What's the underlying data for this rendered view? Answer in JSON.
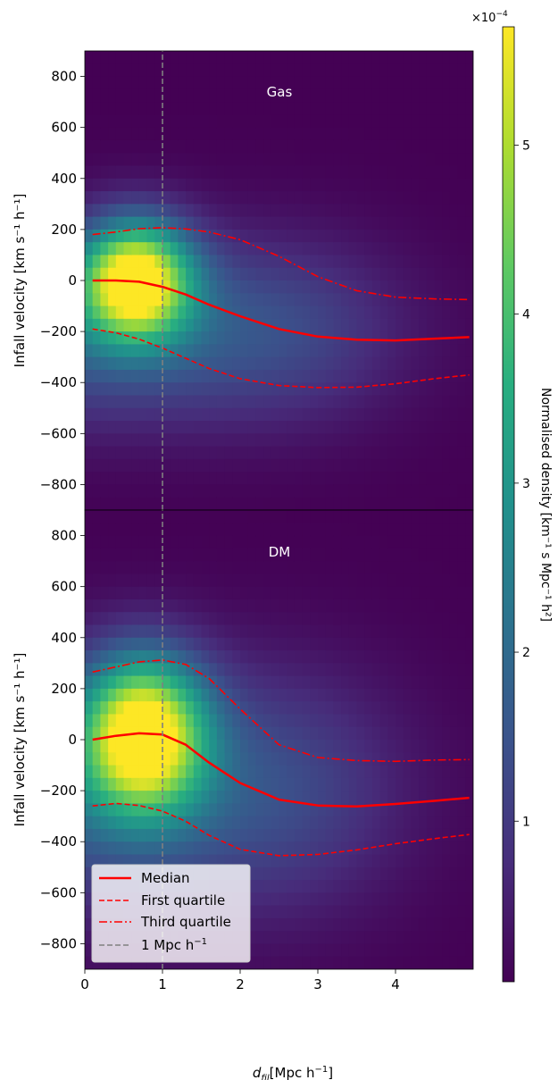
{
  "figure": {
    "xlabel": "d",
    "xlabel_sub": "fil",
    "xlabel_unit": "[Mpc h",
    "xlabel_unit_sup": "−1",
    "xlabel_unit_close": "]"
  },
  "chart_data": [
    {
      "type": "heatmap",
      "annotation": "Gas",
      "ylabel": "Infall velocity [km s⁻¹ h⁻¹]",
      "xlim": [
        0,
        5
      ],
      "ylim": [
        -900,
        900
      ],
      "xticks": [
        "0",
        "1",
        "2",
        "3",
        "4"
      ],
      "yticks": [
        "800",
        "600",
        "400",
        "200",
        "0",
        "−200",
        "−400",
        "−600",
        "−800"
      ],
      "density": {
        "peak_x": 0.65,
        "peak_y": 0,
        "sigma_x": 0.5,
        "sigma_y": 160,
        "tail_x": 3.5
      },
      "series": [
        {
          "name": "Median",
          "style": "solid",
          "x": [
            0.1,
            0.4,
            0.7,
            1.0,
            1.3,
            1.6,
            2.0,
            2.5,
            3.0,
            3.5,
            4.0,
            4.5,
            4.95
          ],
          "y": [
            0,
            0,
            -5,
            -25,
            -55,
            -95,
            -140,
            -190,
            -220,
            -232,
            -235,
            -228,
            -222
          ]
        },
        {
          "name": "First quartile",
          "style": "dashed",
          "x": [
            0.1,
            0.4,
            0.7,
            1.0,
            1.3,
            1.6,
            2.0,
            2.5,
            3.0,
            3.5,
            4.0,
            4.5,
            4.95
          ],
          "y": [
            -190,
            -205,
            -230,
            -265,
            -305,
            -345,
            -385,
            -412,
            -420,
            -418,
            -405,
            -385,
            -370
          ]
        },
        {
          "name": "Third quartile",
          "style": "dashdot",
          "x": [
            0.1,
            0.4,
            0.7,
            1.0,
            1.3,
            1.6,
            2.0,
            2.5,
            3.0,
            3.5,
            4.0,
            4.5,
            4.95
          ],
          "y": [
            180,
            190,
            203,
            207,
            202,
            190,
            160,
            95,
            15,
            -40,
            -65,
            -72,
            -75
          ]
        },
        {
          "name": "1 Mpc h⁻¹",
          "style": "vline",
          "x": [
            1.0,
            1.0
          ],
          "y": [
            -900,
            900
          ]
        }
      ]
    },
    {
      "type": "heatmap",
      "annotation": "DM",
      "ylabel": "Infall velocity [km s⁻¹ h⁻¹]",
      "xlim": [
        0,
        5
      ],
      "ylim": [
        -900,
        900
      ],
      "xticks": [
        "0",
        "1",
        "2",
        "3",
        "4"
      ],
      "yticks": [
        "800",
        "600",
        "400",
        "200",
        "0",
        "−200",
        "−400",
        "−600",
        "−800"
      ],
      "density": {
        "peak_x": 0.75,
        "peak_y": 20,
        "sigma_x": 0.55,
        "sigma_y": 210,
        "tail_x": 3.5
      },
      "series": [
        {
          "name": "Median",
          "style": "solid",
          "x": [
            0.1,
            0.4,
            0.7,
            1.0,
            1.3,
            1.6,
            2.0,
            2.5,
            3.0,
            3.5,
            4.0,
            4.5,
            4.95
          ],
          "y": [
            0,
            15,
            25,
            20,
            -20,
            -90,
            -170,
            -235,
            -258,
            -262,
            -252,
            -240,
            -228
          ]
        },
        {
          "name": "First quartile",
          "style": "dashed",
          "x": [
            0.1,
            0.4,
            0.7,
            1.0,
            1.3,
            1.6,
            2.0,
            2.5,
            3.0,
            3.5,
            4.0,
            4.5,
            4.95
          ],
          "y": [
            -260,
            -250,
            -258,
            -280,
            -320,
            -375,
            -430,
            -455,
            -450,
            -432,
            -408,
            -388,
            -372
          ]
        },
        {
          "name": "Third quartile",
          "style": "dashdot",
          "x": [
            0.1,
            0.4,
            0.7,
            1.0,
            1.3,
            1.6,
            2.0,
            2.5,
            3.0,
            3.5,
            4.0,
            4.5,
            4.95
          ],
          "y": [
            265,
            285,
            305,
            312,
            295,
            240,
            120,
            -20,
            -70,
            -82,
            -85,
            -80,
            -78
          ]
        },
        {
          "name": "1 Mpc h⁻¹",
          "style": "vline",
          "x": [
            1.0,
            1.0
          ],
          "y": [
            -900,
            900
          ]
        }
      ]
    }
  ],
  "legend": {
    "location": "lower-left",
    "entries": [
      {
        "label": "Median",
        "style": "solid",
        "color": "#ff0000"
      },
      {
        "label": "First quartile",
        "style": "dashed",
        "color": "#ff0000"
      },
      {
        "label": "Third quartile",
        "style": "dashdot",
        "color": "#ff0000"
      },
      {
        "label": "1 Mpc h",
        "sup": "−1",
        "style": "dashed",
        "color": "#808080"
      }
    ]
  },
  "colorbar": {
    "label": "Normalised density [km⁻¹ s Mpc⁻¹ h²]",
    "scale_label": "×10",
    "scale_exp": "−4",
    "range": [
      0.05,
      5.7
    ],
    "ticks": [
      {
        "value": 1,
        "label": "1"
      },
      {
        "value": 2,
        "label": "2"
      },
      {
        "value": 3,
        "label": "3"
      },
      {
        "value": 4,
        "label": "4"
      },
      {
        "value": 5,
        "label": "5"
      }
    ],
    "colormap": "viridis"
  },
  "colors": {
    "line": "#ff0000",
    "vline": "#808080",
    "annotation": "#ffffff"
  }
}
